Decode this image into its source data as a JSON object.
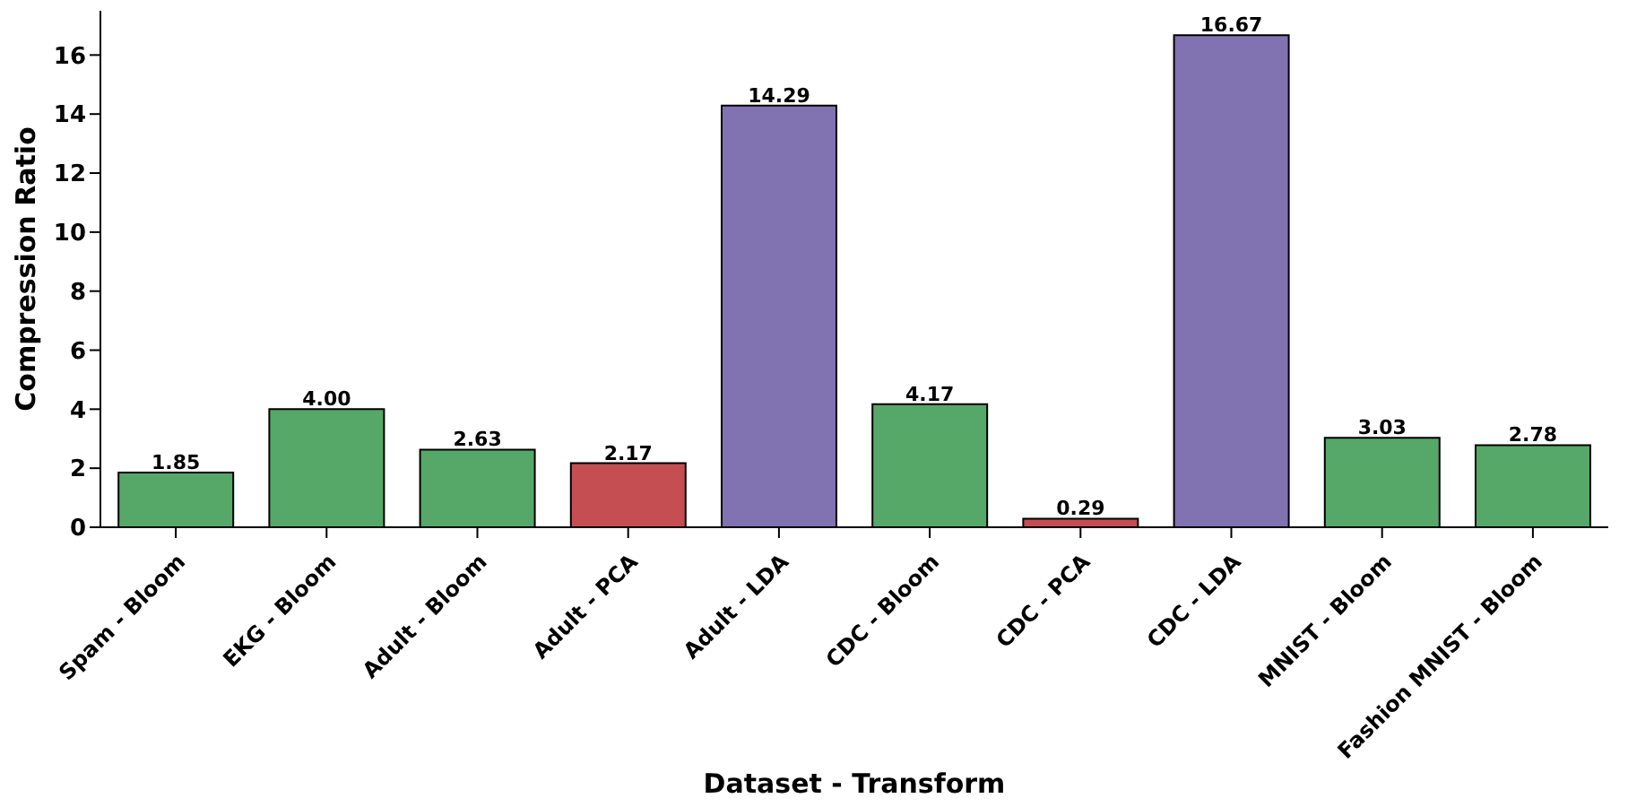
{
  "chart_data": {
    "type": "bar",
    "xlabel": "Dataset - Transform",
    "ylabel": "Compression Ratio",
    "categories": [
      "Spam - Bloom",
      "EKG - Bloom",
      "Adult - Bloom",
      "Adult - PCA",
      "Adult - LDA",
      "CDC - Bloom",
      "CDC - PCA",
      "CDC - LDA",
      "MNIST - Bloom",
      "Fashion MNIST - Bloom"
    ],
    "values": [
      1.85,
      4.0,
      2.63,
      2.17,
      14.29,
      4.17,
      0.29,
      16.67,
      3.03,
      2.78
    ],
    "value_labels": [
      "1.85",
      "4.00",
      "2.63",
      "2.17",
      "14.29",
      "4.17",
      "0.29",
      "16.67",
      "3.03",
      "2.78"
    ],
    "colors": [
      "#55a868",
      "#55a868",
      "#55a868",
      "#c44e52",
      "#8172b2",
      "#55a868",
      "#c44e52",
      "#8172b2",
      "#55a868",
      "#55a868"
    ],
    "ylim": [
      0,
      17.5
    ],
    "yticks": [
      0,
      2,
      4,
      6,
      8,
      10,
      12,
      14,
      16
    ],
    "grid": false,
    "legend": false
  }
}
